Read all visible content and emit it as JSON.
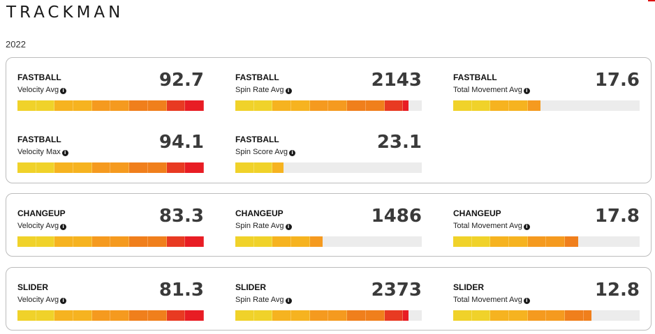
{
  "brand": "TRACKMAN",
  "year": "2022",
  "info_glyph": "i",
  "segment_colors": [
    "#f0d22a",
    "#f0d22a",
    "#f6b320",
    "#f6b320",
    "#f59a1f",
    "#f59a1f",
    "#f07f1c",
    "#f07f1c",
    "#e83a22",
    "#e81d24"
  ],
  "groups": [
    {
      "id": "fastball",
      "metrics": [
        {
          "pitch": "FASTBALL",
          "label": "Velocity Avg",
          "value": "92.7",
          "fill_fraction": 1.0
        },
        {
          "pitch": "FASTBALL",
          "label": "Spin Rate Avg",
          "value": "2143",
          "fill_fraction": 0.93
        },
        {
          "pitch": "FASTBALL",
          "label": "Total Movement Avg",
          "value": "17.6",
          "fill_fraction": 0.47
        },
        {
          "pitch": "FASTBALL",
          "label": "Velocity Max",
          "value": "94.1",
          "fill_fraction": 1.0
        },
        {
          "pitch": "FASTBALL",
          "label": "Spin Score Avg",
          "value": "23.1",
          "fill_fraction": 0.26
        }
      ]
    },
    {
      "id": "changeup",
      "metrics": [
        {
          "pitch": "CHANGEUP",
          "label": "Velocity Avg",
          "value": "83.3",
          "fill_fraction": 1.0
        },
        {
          "pitch": "CHANGEUP",
          "label": "Spin Rate Avg",
          "value": "1486",
          "fill_fraction": 0.47
        },
        {
          "pitch": "CHANGEUP",
          "label": "Total Movement Avg",
          "value": "17.8",
          "fill_fraction": 0.67
        }
      ]
    },
    {
      "id": "slider",
      "metrics": [
        {
          "pitch": "SLIDER",
          "label": "Velocity Avg",
          "value": "81.3",
          "fill_fraction": 1.0
        },
        {
          "pitch": "SLIDER",
          "label": "Spin Rate Avg",
          "value": "2373",
          "fill_fraction": 0.93
        },
        {
          "pitch": "SLIDER",
          "label": "Total Movement Avg",
          "value": "12.8",
          "fill_fraction": 0.74
        }
      ]
    }
  ]
}
